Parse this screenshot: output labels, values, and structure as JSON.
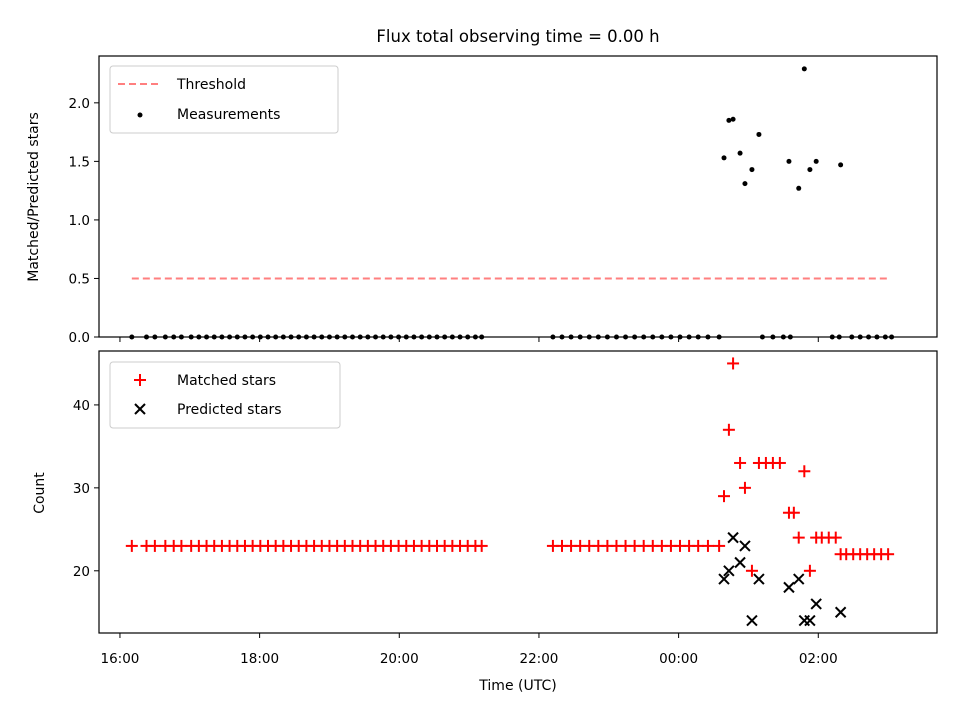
{
  "chart_data": [
    {
      "type": "scatter",
      "title": "Flux total observing time = 0.00 h",
      "ylabel": "Matched/Predicted stars",
      "xlim": [
        15.7,
        27.7
      ],
      "ylim": [
        0.0,
        2.4
      ],
      "yticks": [
        0.0,
        0.5,
        1.0,
        1.5,
        2.0
      ],
      "ytick_labels": [
        "0.0",
        "0.5",
        "1.0",
        "1.5",
        "2.0"
      ],
      "legend_position": "top-left",
      "threshold": {
        "name": "Threshold",
        "value": 0.5,
        "x_start": 16.17,
        "x_end": 27.0,
        "color": "#ff7f7f"
      },
      "series": [
        {
          "name": "Measurements",
          "color": "#000000",
          "marker": "dot",
          "x": [
            16.17,
            16.38,
            16.5,
            16.65,
            16.77,
            16.88,
            17.02,
            17.13,
            17.24,
            17.35,
            17.46,
            17.57,
            17.68,
            17.79,
            17.9,
            18.01,
            18.12,
            18.23,
            18.34,
            18.45,
            18.56,
            18.67,
            18.78,
            18.89,
            19.0,
            19.11,
            19.22,
            19.33,
            19.44,
            19.55,
            19.66,
            19.77,
            19.88,
            19.99,
            20.1,
            20.21,
            20.32,
            20.43,
            20.54,
            20.65,
            20.76,
            20.87,
            20.98,
            21.09,
            21.18,
            22.2,
            22.33,
            22.46,
            22.59,
            22.72,
            22.85,
            22.98,
            23.11,
            23.24,
            23.37,
            23.5,
            23.63,
            23.76,
            23.89,
            24.02,
            24.15,
            24.28,
            24.42,
            24.58,
            25.2,
            25.35,
            25.5,
            25.6,
            26.2,
            26.3,
            26.48,
            26.6,
            26.72,
            26.84,
            26.96,
            27.05,
            24.65,
            24.72,
            24.78,
            24.88,
            24.95,
            25.05,
            25.15,
            25.58,
            25.72,
            25.8,
            25.88,
            25.97,
            26.32
          ],
          "y": [
            0,
            0,
            0,
            0,
            0,
            0,
            0,
            0,
            0,
            0,
            0,
            0,
            0,
            0,
            0,
            0,
            0,
            0,
            0,
            0,
            0,
            0,
            0,
            0,
            0,
            0,
            0,
            0,
            0,
            0,
            0,
            0,
            0,
            0,
            0,
            0,
            0,
            0,
            0,
            0,
            0,
            0,
            0,
            0,
            0,
            0,
            0,
            0,
            0,
            0,
            0,
            0,
            0,
            0,
            0,
            0,
            0,
            0,
            0,
            0,
            0,
            0,
            0,
            0,
            0,
            0,
            0,
            0,
            0,
            0,
            0,
            0,
            0,
            0,
            0,
            0,
            1.53,
            1.85,
            1.86,
            1.57,
            1.31,
            1.43,
            1.73,
            1.5,
            1.27,
            2.29,
            1.43,
            1.5,
            1.47
          ]
        }
      ]
    },
    {
      "type": "scatter",
      "xlabel": "Time (UTC)",
      "ylabel": "Count",
      "xlim": [
        15.7,
        27.7
      ],
      "ylim": [
        12.5,
        46.5
      ],
      "xticks": [
        16,
        18,
        20,
        22,
        24,
        26
      ],
      "xtick_labels": [
        "16:00",
        "18:00",
        "20:00",
        "22:00",
        "00:00",
        "02:00"
      ],
      "yticks": [
        20,
        30,
        40
      ],
      "ytick_labels": [
        "20",
        "30",
        "40"
      ],
      "legend_position": "top-left",
      "series": [
        {
          "name": "Matched stars",
          "color": "#ff0000",
          "marker": "plus",
          "x": [
            16.17,
            16.38,
            16.5,
            16.65,
            16.77,
            16.88,
            17.02,
            17.13,
            17.24,
            17.35,
            17.46,
            17.57,
            17.68,
            17.79,
            17.9,
            18.01,
            18.12,
            18.23,
            18.34,
            18.45,
            18.56,
            18.67,
            18.78,
            18.89,
            19.0,
            19.11,
            19.22,
            19.33,
            19.44,
            19.55,
            19.66,
            19.77,
            19.88,
            19.99,
            20.1,
            20.21,
            20.32,
            20.43,
            20.54,
            20.65,
            20.76,
            20.87,
            20.98,
            21.09,
            21.18,
            22.2,
            22.33,
            22.46,
            22.59,
            22.72,
            22.85,
            22.98,
            23.11,
            23.24,
            23.37,
            23.5,
            23.63,
            23.76,
            23.89,
            24.02,
            24.15,
            24.28,
            24.42,
            24.58,
            24.65,
            24.72,
            24.78,
            24.88,
            24.95,
            25.05,
            25.15,
            25.25,
            25.35,
            25.45,
            25.58,
            25.65,
            25.72,
            25.8,
            25.88,
            25.97,
            26.05,
            26.15,
            26.25,
            26.32,
            26.4,
            26.5,
            26.6,
            26.7,
            26.8,
            26.9,
            27.0
          ],
          "y": [
            23,
            23,
            23,
            23,
            23,
            23,
            23,
            23,
            23,
            23,
            23,
            23,
            23,
            23,
            23,
            23,
            23,
            23,
            23,
            23,
            23,
            23,
            23,
            23,
            23,
            23,
            23,
            23,
            23,
            23,
            23,
            23,
            23,
            23,
            23,
            23,
            23,
            23,
            23,
            23,
            23,
            23,
            23,
            23,
            23,
            23,
            23,
            23,
            23,
            23,
            23,
            23,
            23,
            23,
            23,
            23,
            23,
            23,
            23,
            23,
            23,
            23,
            23,
            23,
            29,
            37,
            45,
            33,
            30,
            20,
            33,
            33,
            33,
            33,
            27,
            27,
            24,
            32,
            20,
            24,
            24,
            24,
            24,
            22,
            22,
            22,
            22,
            22,
            22,
            22,
            22
          ]
        },
        {
          "name": "Predicted stars",
          "color": "#000000",
          "marker": "x",
          "x": [
            24.65,
            24.72,
            24.78,
            24.88,
            24.95,
            25.05,
            25.15,
            25.58,
            25.72,
            25.8,
            25.88,
            25.97,
            26.32
          ],
          "y": [
            19,
            20,
            24,
            21,
            23,
            14,
            19,
            18,
            19,
            14,
            14,
            16,
            15
          ]
        }
      ]
    }
  ]
}
